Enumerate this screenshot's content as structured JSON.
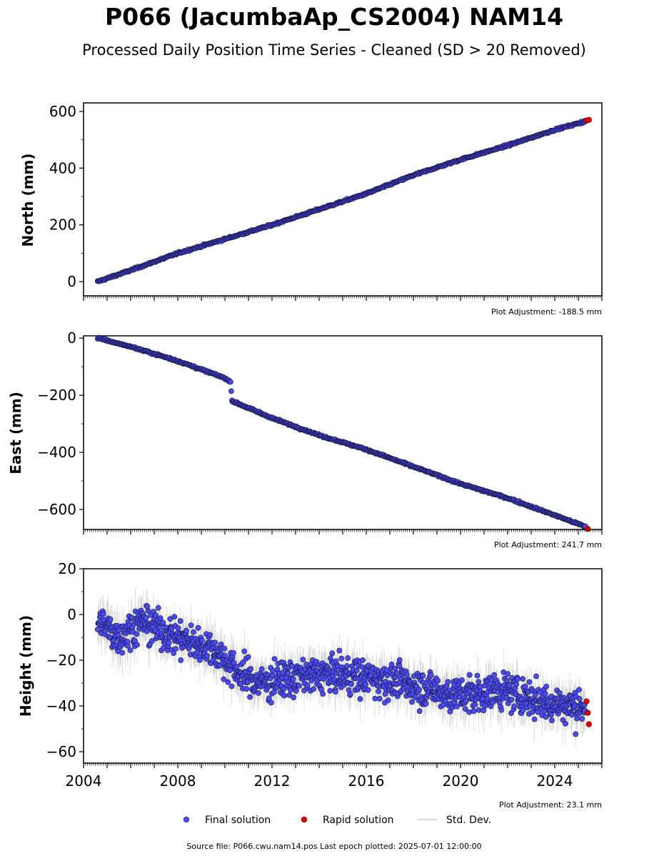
{
  "figure": {
    "title": "P066 (JacumbaAp_CS2004) NAM14",
    "subtitle": "Processed Daily Position Time Series - Cleaned (SD > 20 Removed)",
    "footer": "Source file: P066.cwu.nam14.pos  Last epoch plotted: 2025-07-01 12:00:00"
  },
  "legend": [
    {
      "label": "Final solution",
      "color": "#4a4af0",
      "kind": "point"
    },
    {
      "label": "Rapid solution",
      "color": "#e00000",
      "kind": "point"
    },
    {
      "label": "Std. Dev.",
      "color": "#cccccc",
      "kind": "line"
    }
  ],
  "colors": {
    "final": "#4a4af0",
    "rapid": "#e00000",
    "stddev": "#b0b0b0",
    "edge": "#000000"
  },
  "chart_data": [
    {
      "type": "scatter",
      "ylabel": "North (mm)",
      "adjustment": "Plot Adjustment: -188.5 mm",
      "xlim": [
        2004.0,
        2026.0
      ],
      "ylim": [
        -50,
        630
      ],
      "yticks": [
        0,
        200,
        400,
        600
      ],
      "ytick_labels": [
        "0",
        "200",
        "400",
        "600"
      ],
      "xticks": [],
      "xtick_labels": [],
      "series": [
        {
          "name": "Final solution",
          "x": [
            2004.6,
            2006.0,
            2008.0,
            2010.0,
            2012.0,
            2014.0,
            2016.0,
            2018.0,
            2020.0,
            2022.0,
            2024.0,
            2025.3
          ],
          "y": [
            0,
            40,
            100,
            150,
            200,
            255,
            310,
            375,
            430,
            480,
            535,
            565
          ]
        },
        {
          "name": "Rapid solution",
          "x": [
            2025.35,
            2025.45
          ],
          "y": [
            568,
            570
          ]
        }
      ]
    },
    {
      "type": "scatter",
      "ylabel": "East (mm)",
      "adjustment": "Plot Adjustment: 241.7 mm",
      "xlim": [
        2004.0,
        2026.0
      ],
      "ylim": [
        -670,
        8
      ],
      "yticks": [
        0,
        -200,
        -400,
        -600
      ],
      "ytick_labels": [
        "0",
        "−200",
        "−400",
        "−600"
      ],
      "xticks": [],
      "xtick_labels": [],
      "series": [
        {
          "name": "Final solution",
          "x": [
            2004.6,
            2006.0,
            2008.0,
            2010.0,
            2010.25,
            2010.3,
            2012.0,
            2014.0,
            2016.0,
            2018.0,
            2020.0,
            2022.0,
            2024.0,
            2025.3
          ],
          "y": [
            0,
            -30,
            -80,
            -140,
            -155,
            -220,
            -280,
            -340,
            -390,
            -450,
            -510,
            -560,
            -620,
            -660
          ]
        },
        {
          "name": "Rapid solution",
          "x": [
            2025.4
          ],
          "y": [
            -668
          ]
        }
      ]
    },
    {
      "type": "scatter",
      "ylabel": "Height (mm)",
      "adjustment": "Plot Adjustment: 23.1 mm",
      "xlim": [
        2004.0,
        2026.0
      ],
      "ylim": [
        -65,
        20
      ],
      "yticks": [
        20,
        0,
        -20,
        -40,
        -60
      ],
      "ytick_labels": [
        "20",
        "0",
        "−20",
        "−40",
        "−60"
      ],
      "xticks": [
        2004,
        2008,
        2012,
        2016,
        2020,
        2024
      ],
      "xtick_labels": [
        "2004",
        "2008",
        "2012",
        "2016",
        "2020",
        "2024"
      ],
      "series": [
        {
          "name": "Final solution",
          "x": [
            2004.6,
            2005.5,
            2006.5,
            2007.5,
            2008.5,
            2009.5,
            2010.5,
            2011.5,
            2012.5,
            2013.5,
            2014.5,
            2015.5,
            2016.5,
            2017.5,
            2018.5,
            2019.5,
            2020.5,
            2021.5,
            2022.5,
            2023.5,
            2024.5,
            2025.3
          ],
          "y": [
            -3,
            -10,
            -3,
            -8,
            -12,
            -15,
            -25,
            -30,
            -28,
            -27,
            -26,
            -27,
            -28,
            -30,
            -32,
            -35,
            -35,
            -33,
            -35,
            -38,
            -40,
            -40
          ]
        },
        {
          "name": "Rapid solution",
          "x": [
            2025.35,
            2025.4,
            2025.45
          ],
          "y": [
            -38,
            -43,
            -48
          ]
        }
      ]
    }
  ]
}
